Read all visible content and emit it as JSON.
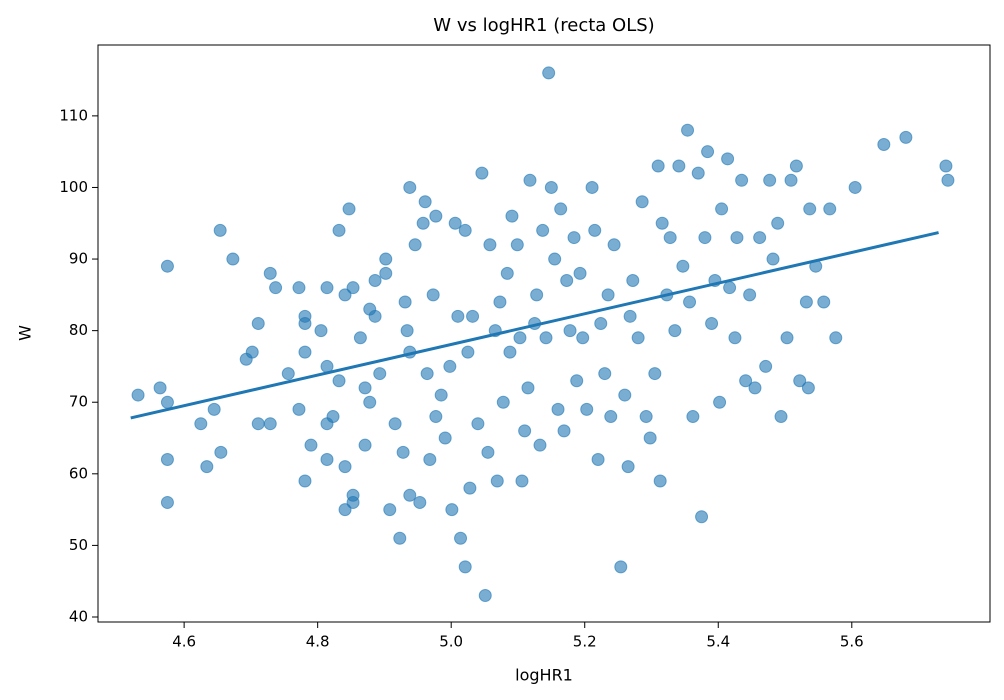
{
  "chart_data": {
    "type": "scatter",
    "title": "W vs logHR1 (recta OLS)",
    "x_label": "logHR1",
    "y_label": "W",
    "xlim": [
      4.471,
      5.807
    ],
    "ylim": [
      39.3,
      119.9
    ],
    "xticks": [
      4.6,
      4.8,
      {
        "value": 5,
        "label": "5.0"
      },
      5.2,
      5.4,
      5.6
    ],
    "yticks": [
      40,
      50,
      60,
      70,
      80,
      90,
      100,
      110
    ],
    "series": [
      {
        "color": "#1f77b4",
        "x": [
          4.531,
          4.564,
          4.575,
          4.575,
          4.575,
          4.575,
          4.625,
          4.634,
          4.645,
          4.654,
          4.655,
          4.673,
          4.693,
          4.702,
          4.711,
          4.711,
          4.729,
          4.729,
          4.737,
          4.756,
          4.772,
          4.772,
          4.781,
          4.781,
          4.781,
          4.781,
          4.79,
          4.805,
          4.814,
          4.814,
          4.814,
          4.814,
          4.823,
          4.832,
          4.832,
          4.841,
          4.841,
          4.841,
          4.847,
          4.853,
          4.853,
          4.853,
          4.864,
          4.871,
          4.871,
          4.878,
          4.878,
          4.886,
          4.886,
          4.893,
          4.902,
          4.902,
          4.908,
          4.916,
          4.923,
          4.928,
          4.931,
          4.934,
          4.938,
          4.938,
          4.938,
          4.946,
          4.953,
          4.958,
          4.961,
          4.964,
          4.968,
          4.973,
          4.977,
          4.977,
          4.985,
          4.991,
          4.998,
          5.001,
          5.006,
          5.01,
          5.014,
          5.021,
          5.021,
          5.025,
          5.028,
          5.032,
          5.04,
          5.046,
          5.051,
          5.055,
          5.058,
          5.066,
          5.069,
          5.073,
          5.078,
          5.084,
          5.088,
          5.091,
          5.099,
          5.103,
          5.106,
          5.11,
          5.115,
          5.118,
          5.125,
          5.128,
          5.133,
          5.137,
          5.142,
          5.146,
          5.15,
          5.155,
          5.16,
          5.164,
          5.169,
          5.173,
          5.178,
          5.184,
          5.188,
          5.193,
          5.197,
          5.203,
          5.211,
          5.215,
          5.22,
          5.224,
          5.23,
          5.235,
          5.239,
          5.244,
          5.254,
          5.26,
          5.265,
          5.268,
          5.272,
          5.28,
          5.286,
          5.292,
          5.298,
          5.305,
          5.31,
          5.313,
          5.316,
          5.323,
          5.328,
          5.335,
          5.341,
          5.347,
          5.354,
          5.357,
          5.362,
          5.37,
          5.375,
          5.38,
          5.384,
          5.39,
          5.395,
          5.402,
          5.405,
          5.414,
          5.417,
          5.425,
          5.428,
          5.435,
          5.441,
          5.447,
          5.455,
          5.462,
          5.471,
          5.477,
          5.482,
          5.489,
          5.494,
          5.503,
          5.509,
          5.517,
          5.522,
          5.532,
          5.535,
          5.537,
          5.546,
          5.558,
          5.567,
          5.576,
          5.605,
          5.648,
          5.681,
          5.741,
          5.744
        ],
        "values": [
          71,
          72,
          89,
          70,
          62,
          56,
          67,
          61,
          69,
          94,
          63,
          90,
          76,
          77,
          81,
          67,
          67,
          88,
          86,
          74,
          86,
          69,
          82,
          81,
          77,
          59,
          64,
          80,
          86,
          75,
          67,
          62,
          68,
          94,
          73,
          85,
          61,
          55,
          97,
          86,
          57,
          56,
          79,
          72,
          64,
          83,
          70,
          87,
          82,
          74,
          88,
          90,
          55,
          67,
          51,
          63,
          84,
          80,
          100,
          77,
          57,
          92,
          56,
          95,
          98,
          74,
          62,
          85,
          96,
          68,
          71,
          65,
          75,
          55,
          95,
          82,
          51,
          47,
          94,
          77,
          58,
          82,
          67,
          102,
          43,
          63,
          92,
          80,
          59,
          84,
          70,
          88,
          77,
          96,
          92,
          79,
          59,
          66,
          72,
          101,
          81,
          85,
          64,
          94,
          79,
          116,
          100,
          90,
          69,
          97,
          66,
          87,
          80,
          93,
          73,
          88,
          79,
          69,
          100,
          94,
          62,
          81,
          74,
          85,
          68,
          92,
          47,
          71,
          61,
          82,
          87,
          79,
          98,
          68,
          65,
          74,
          103,
          59,
          95,
          85,
          93,
          80,
          103,
          89,
          108,
          84,
          68,
          102,
          54,
          93,
          105,
          81,
          87,
          70,
          97,
          104,
          86,
          79,
          93,
          101,
          73,
          85,
          72,
          93,
          75,
          101,
          90,
          95,
          68,
          79,
          101,
          103,
          73,
          84,
          72,
          97,
          89,
          84,
          97,
          79,
          100,
          106,
          107,
          103,
          101
        ]
      },
      {
        "type": "line",
        "color": "#1f77b4",
        "x": [
          4.52,
          5.73
        ],
        "values": [
          67.8,
          93.7
        ]
      }
    ]
  }
}
